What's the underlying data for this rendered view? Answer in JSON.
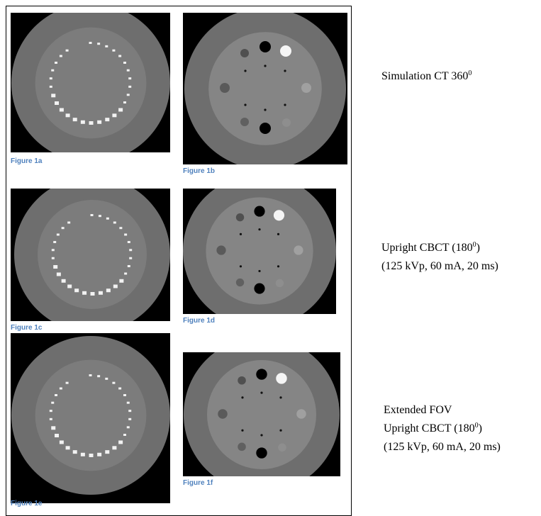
{
  "figures": [
    {
      "caption": "Figure 1a"
    },
    {
      "caption": "Figure 1b"
    },
    {
      "caption": "Figure 1c"
    },
    {
      "caption": "Figure 1d"
    },
    {
      "caption": "Figure 1e"
    },
    {
      "caption": "Figure 1f"
    }
  ],
  "descriptions": [
    {
      "lines": [
        [
          {
            "text": "Simulation CT 360"
          },
          {
            "superscript": "0"
          }
        ]
      ]
    },
    {
      "lines": [
        [
          {
            "text": "Upright CBCT (180"
          },
          {
            "superscript": "0"
          },
          {
            "text": ")"
          }
        ],
        [
          {
            "text": "(125 kVp, 60 mA, 20 ms)"
          }
        ]
      ]
    },
    {
      "lines": [
        [
          {
            "text": "Extended FOV"
          }
        ],
        [
          {
            "text": "Upright CBCT (180"
          },
          {
            "superscript": "0"
          },
          {
            "text": ")"
          }
        ],
        [
          {
            "text": "(125 kVp, 60 mA, 20 ms)"
          }
        ]
      ]
    }
  ]
}
